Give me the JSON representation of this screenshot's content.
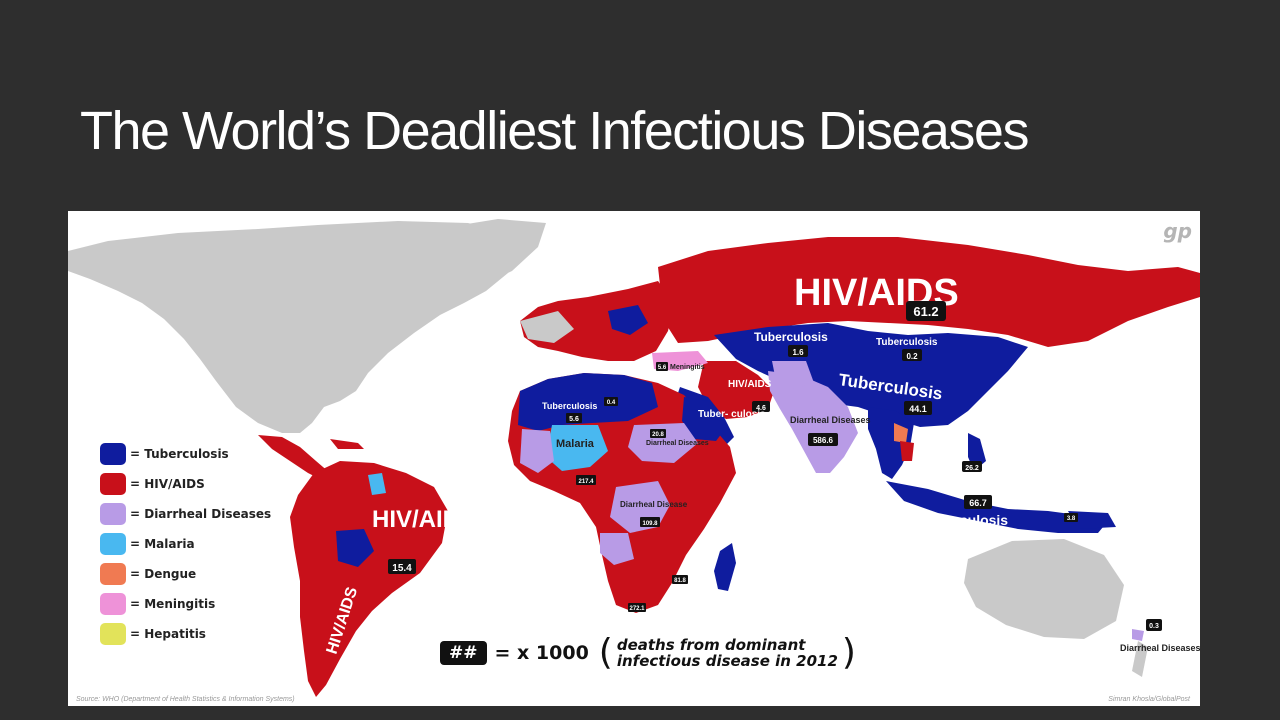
{
  "title": "The World’s Deadliest Infectious Diseases",
  "logo": "gp",
  "legend": [
    {
      "label": "= Tuberculosis",
      "color": "#0f1c9e"
    },
    {
      "label": "= HIV/AIDS",
      "color": "#c8101a"
    },
    {
      "label": "= Diarrheal Diseases",
      "color": "#b89be6"
    },
    {
      "label": "= Malaria",
      "color": "#49b8f0"
    },
    {
      "label": "= Dengue",
      "color": "#f07a52"
    },
    {
      "label": "= Meningitis",
      "color": "#ee92d8"
    },
    {
      "label": "= Hepatitis",
      "color": "#e2e35a"
    }
  ],
  "key": {
    "badge": "##",
    "equals": "= x 1000",
    "open_paren": "(",
    "line1": "deaths from dominant",
    "line2": "infectious disease in 2012",
    "close_paren": ")"
  },
  "source": "Source: WHO (Department of Health Statistics & Information Systems)",
  "credit": "Simran Khosla/GlobalPost",
  "regions": {
    "russia": {
      "disease": "HIV/AIDS",
      "value": "61.2"
    },
    "kazakhstan": {
      "disease": "Tuberculosis",
      "value": "1.6"
    },
    "mongolia": {
      "disease": "Tuberculosis",
      "value": "0.2"
    },
    "china": {
      "disease": "Tuberculosis",
      "value": "44.1"
    },
    "india": {
      "disease": "Diarrheal Diseases",
      "value": "586.6"
    },
    "iran": {
      "disease": "HIV/AIDS",
      "value": "4.6"
    },
    "turkey": {
      "disease": "Meningitis",
      "value": "5.6"
    },
    "south_america": {
      "disease": "HIV/AIDS",
      "value": "15.4"
    },
    "argentina": {
      "disease": "HIV/AIDS"
    },
    "indonesia": {
      "disease": "Tuberculosis",
      "value": "66.7"
    },
    "philippines": {
      "value": "26.2"
    },
    "png": {
      "value": "3.8"
    },
    "north_africa": {
      "disease": "Tuberculosis",
      "value": "5.6"
    },
    "libya": {
      "value": "0.4"
    },
    "east_africa": {
      "disease": "Tuber-\nculosis"
    },
    "west_africa": {
      "disease": "Malaria"
    },
    "sudan": {
      "disease": "Diarrheal Diseases",
      "value": "20.8"
    },
    "nigeria": {
      "value": "217.4"
    },
    "drc": {
      "disease": "Diarrheal Disease",
      "value": "109.8"
    },
    "south_africa": {
      "value": "272.1"
    },
    "mozambique": {
      "value": "81.8"
    },
    "nz_island": {
      "disease": "Diarrheal Diseases",
      "value": "0.3"
    },
    "meningitis_label": "Meningitis"
  }
}
